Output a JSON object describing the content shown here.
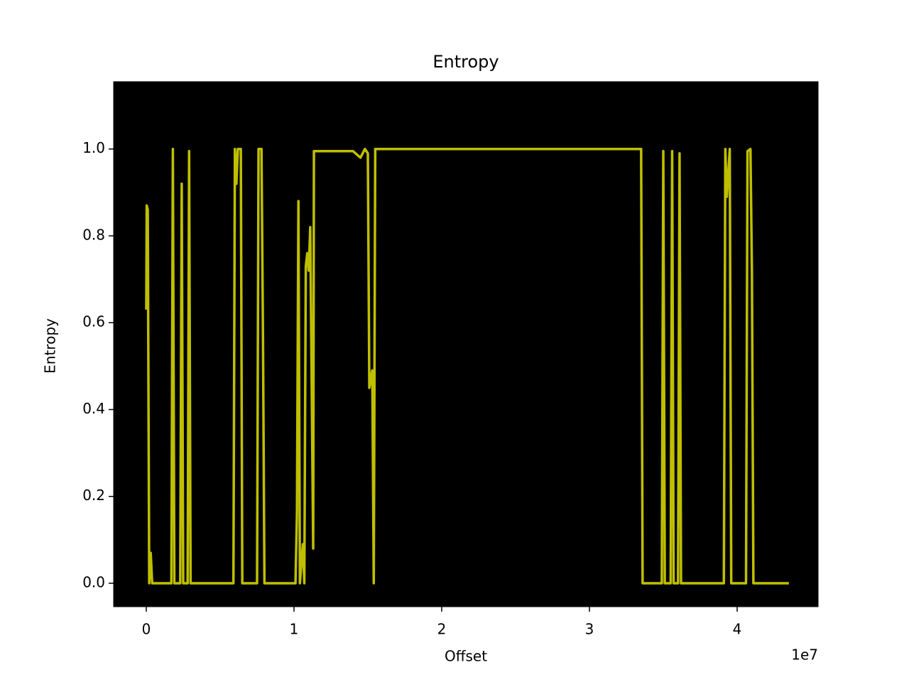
{
  "chart_data": {
    "type": "line",
    "title": "Entropy",
    "x_label": "Offset",
    "y_label": "Entropy",
    "x_offset_label": "1e7",
    "background": "#000000",
    "xlim": [
      -2210000,
      45480000
    ],
    "ylim": [
      -0.054,
      1.155
    ],
    "xticks": [
      {
        "value": 0,
        "label": "0"
      },
      {
        "value": 10000000,
        "label": "1"
      },
      {
        "value": 20000000,
        "label": "2"
      },
      {
        "value": 30000000,
        "label": "3"
      },
      {
        "value": 40000000,
        "label": "4"
      }
    ],
    "yticks": [
      {
        "value": 0,
        "label": "0.0"
      },
      {
        "value": 0.2,
        "label": "0.2"
      },
      {
        "value": 0.4,
        "label": "0.4"
      },
      {
        "value": 0.6,
        "label": "0.6"
      },
      {
        "value": 0.8,
        "label": "0.8"
      },
      {
        "value": 1,
        "label": "1.0"
      }
    ],
    "series": [
      {
        "color": "#bfbf00",
        "x": [
          0,
          30000,
          100000,
          200000,
          300000,
          400000,
          1700000,
          1800000,
          1900000,
          2300000,
          2400000,
          2500000,
          2800000,
          2900000,
          3000000,
          5900000,
          6000000,
          6100000,
          6200000,
          6400000,
          6500000,
          7500000,
          7600000,
          7800000,
          7900000,
          8000000,
          10100000,
          10200000,
          10300000,
          10400000,
          10600000,
          10700000,
          10800000,
          10900000,
          11000000,
          11100000,
          11200000,
          11300000,
          11350000,
          12000000,
          13000000,
          14000000,
          14500000,
          14800000,
          15000000,
          15100000,
          15300000,
          15400000,
          15500000,
          20000000,
          25000000,
          30000000,
          33500000,
          33600000,
          34900000,
          35000000,
          35100000,
          35500000,
          35600000,
          35700000,
          36000000,
          36100000,
          36200000,
          39100000,
          39200000,
          39300000,
          39500000,
          39600000,
          40600000,
          40700000,
          40900000,
          41000000,
          41100000,
          43500000
        ],
        "values": [
          0.63,
          0.87,
          0.86,
          0.0,
          0.07,
          0.0,
          0.0,
          1.0,
          0.0,
          0.0,
          0.92,
          0.0,
          0.0,
          0.995,
          0.0,
          0.0,
          1.0,
          0.92,
          1.0,
          1.0,
          0.0,
          0.0,
          1.0,
          1.0,
          0.57,
          0.0,
          0.0,
          0.16,
          0.88,
          0.0,
          0.09,
          0.0,
          0.73,
          0.76,
          0.72,
          0.82,
          0.45,
          0.08,
          0.995,
          0.995,
          0.995,
          0.995,
          0.98,
          1.0,
          0.99,
          0.45,
          0.49,
          0.0,
          1.0,
          1.0,
          1.0,
          1.0,
          1.0,
          0.0,
          0.0,
          0.995,
          0.0,
          0.0,
          0.995,
          0.0,
          0.0,
          0.99,
          0.0,
          0.0,
          1.0,
          0.89,
          1.0,
          0.0,
          0.0,
          0.995,
          1.0,
          0.72,
          0.0,
          0.0
        ]
      }
    ]
  }
}
